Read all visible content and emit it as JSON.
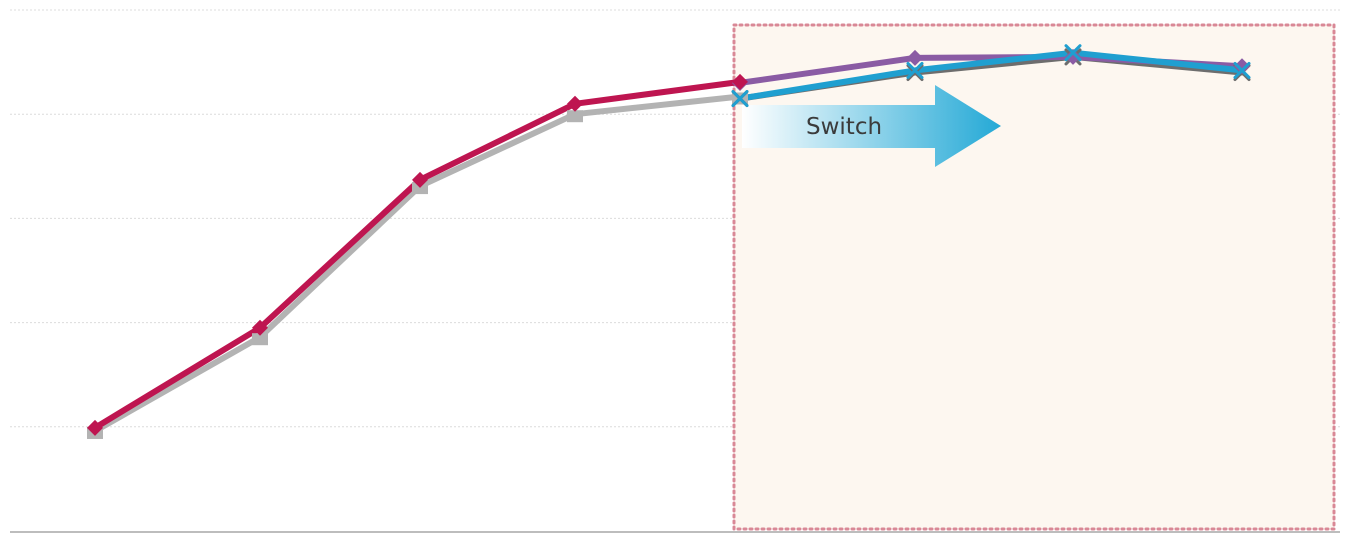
{
  "colors": {
    "background": "#ffffff",
    "gridline": "#dcdcdc",
    "axis": "#bdbdbd",
    "highlight_fill": "#fdf7f0",
    "highlight_border": "#d98896",
    "arrow_start": "#ffffff",
    "arrow_end": "#24a9d6"
  },
  "callout": {
    "label": "Switch"
  },
  "chart_data": {
    "type": "line",
    "x": [
      1,
      2,
      3,
      4,
      5,
      6,
      7,
      8
    ],
    "ylim": [
      0,
      5
    ],
    "grid": true,
    "legend": "none",
    "highlight_range": [
      5,
      8
    ],
    "series": [
      {
        "color": "#b3b3b3",
        "marker": "square",
        "points": [
          [
            1,
            0.96
          ],
          [
            2,
            1.86
          ],
          [
            3,
            3.31
          ],
          [
            4,
            4.0
          ],
          [
            5,
            4.17
          ]
        ]
      },
      {
        "color": "#6d6d6d",
        "marker": "x",
        "points": [
          [
            5,
            4.15
          ],
          [
            6,
            4.4
          ],
          [
            7,
            4.55
          ],
          [
            8,
            4.4
          ]
        ]
      },
      {
        "color": "#8a5ba4",
        "marker": "diamond",
        "points": [
          [
            5,
            4.3
          ],
          [
            6,
            4.54
          ],
          [
            7,
            4.55
          ],
          [
            8,
            4.46
          ]
        ]
      },
      {
        "color": "#1f9fd0",
        "marker": "x",
        "points": [
          [
            5,
            4.15
          ],
          [
            6,
            4.42
          ],
          [
            7,
            4.59
          ],
          [
            8,
            4.42
          ]
        ]
      },
      {
        "color": "#be1550",
        "marker": "diamond",
        "points": [
          [
            1,
            0.99
          ],
          [
            2,
            1.95
          ],
          [
            3,
            3.37
          ],
          [
            4,
            4.1
          ],
          [
            5,
            4.31
          ]
        ]
      }
    ]
  }
}
